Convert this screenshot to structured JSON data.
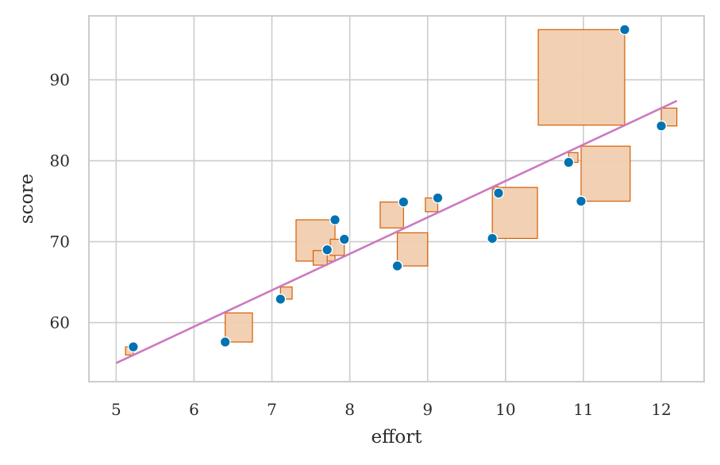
{
  "chart_data": {
    "type": "scatter",
    "xlabel": "effort",
    "ylabel": "score",
    "xlim": [
      4.65,
      12.55
    ],
    "ylim": [
      52.7,
      97.9
    ],
    "x_ticks": [
      5,
      6,
      7,
      8,
      9,
      10,
      11,
      12
    ],
    "y_ticks": [
      60,
      70,
      80,
      90
    ],
    "grid": true,
    "points": [
      {
        "x": 5.22,
        "y": 57.0
      },
      {
        "x": 6.4,
        "y": 57.6
      },
      {
        "x": 7.11,
        "y": 62.9
      },
      {
        "x": 7.71,
        "y": 69.0
      },
      {
        "x": 7.81,
        "y": 72.7
      },
      {
        "x": 7.93,
        "y": 70.3
      },
      {
        "x": 8.61,
        "y": 67.0
      },
      {
        "x": 8.69,
        "y": 74.9
      },
      {
        "x": 9.13,
        "y": 75.4
      },
      {
        "x": 9.83,
        "y": 70.4
      },
      {
        "x": 9.91,
        "y": 76.0
      },
      {
        "x": 10.81,
        "y": 79.8
      },
      {
        "x": 10.97,
        "y": 75.0
      },
      {
        "x": 11.53,
        "y": 96.2
      },
      {
        "x": 12.0,
        "y": 84.3
      }
    ],
    "residual_boxes": [
      {
        "x0": 5.12,
        "x1": 5.22,
        "y0": 56.0,
        "y1": 57.0
      },
      {
        "x0": 6.4,
        "x1": 6.75,
        "y0": 57.6,
        "y1": 61.2
      },
      {
        "x0": 7.11,
        "x1": 7.26,
        "y0": 62.9,
        "y1": 64.4
      },
      {
        "x0": 7.31,
        "x1": 7.81,
        "y0": 67.6,
        "y1": 72.7
      },
      {
        "x0": 7.53,
        "x1": 7.71,
        "y0": 67.1,
        "y1": 68.9
      },
      {
        "x0": 7.75,
        "x1": 7.93,
        "y0": 68.3,
        "y1": 70.3
      },
      {
        "x0": 8.39,
        "x1": 8.69,
        "y0": 71.7,
        "y1": 74.9
      },
      {
        "x0": 8.61,
        "x1": 9.0,
        "y0": 67.0,
        "y1": 71.1
      },
      {
        "x0": 8.97,
        "x1": 9.13,
        "y0": 73.7,
        "y1": 75.4
      },
      {
        "x0": 9.83,
        "x1": 10.41,
        "y0": 70.4,
        "y1": 76.7
      },
      {
        "x0": 9.85,
        "x1": 9.91,
        "y0": 76.0,
        "y1": 76.8
      },
      {
        "x0": 10.81,
        "x1": 10.93,
        "y0": 79.8,
        "y1": 81.0
      },
      {
        "x0": 10.97,
        "x1": 11.6,
        "y0": 75.0,
        "y1": 81.8
      },
      {
        "x0": 10.42,
        "x1": 11.53,
        "y0": 84.4,
        "y1": 96.2
      },
      {
        "x0": 12.0,
        "x1": 12.2,
        "y0": 84.3,
        "y1": 86.5
      }
    ],
    "fit_line": {
      "x": [
        5.0,
        12.2
      ],
      "y": [
        55.0,
        87.4
      ]
    },
    "colors": {
      "points": "#0072b2",
      "point_edge": "#ffffff",
      "box_fill": "#f0cdb0",
      "box_edge": "#d55e00",
      "fit_line": "#cc79c0",
      "grid": "#cccccc",
      "frame": "#cccccc"
    }
  }
}
